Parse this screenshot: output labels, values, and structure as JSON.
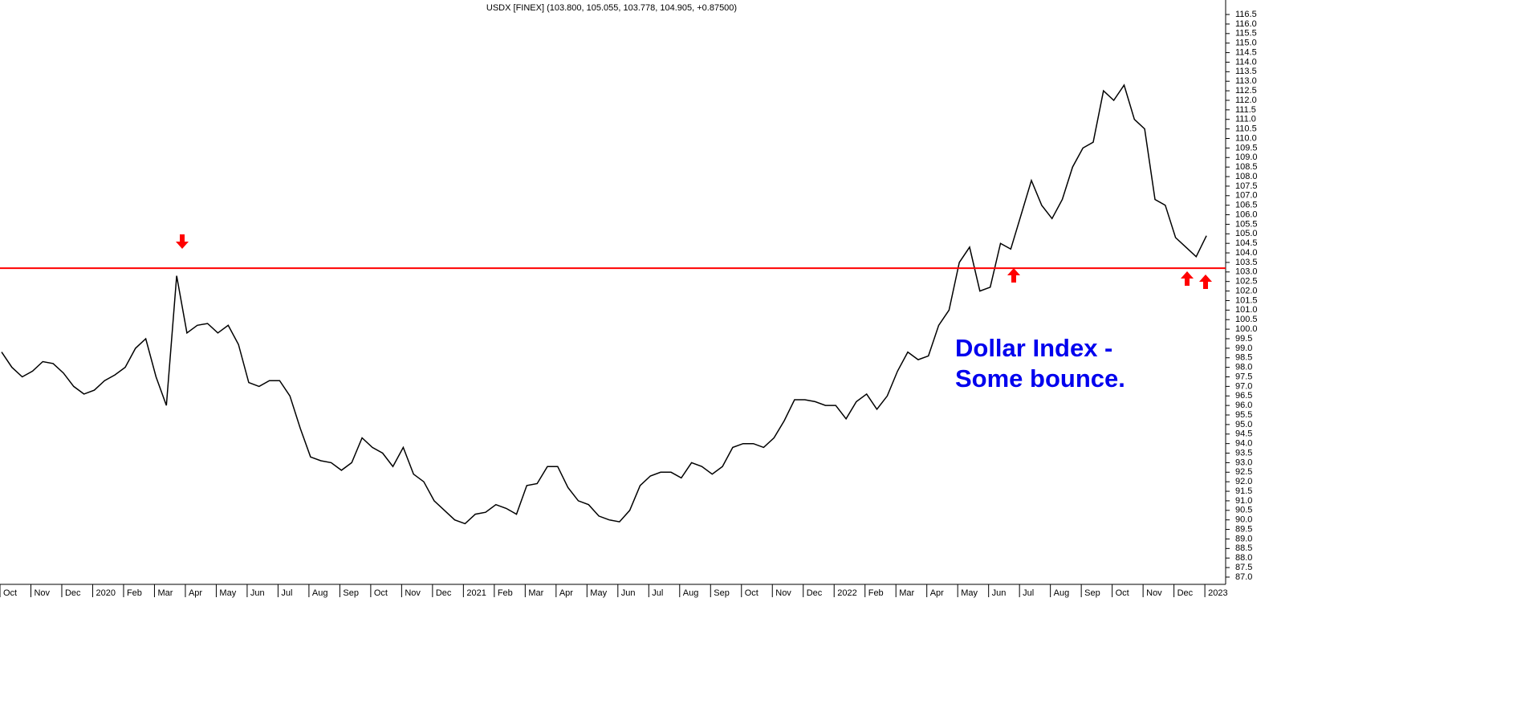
{
  "chart_data": {
    "type": "line",
    "title": "USDX [FINEX] (103.800, 105.055, 103.778, 104.905, +0.87500)",
    "annotations": [
      "Dollar Index -",
      "Some bounce."
    ],
    "categories": [
      "Oct",
      null,
      null,
      "Nov",
      null,
      null,
      "Dec",
      null,
      null,
      "2020",
      null,
      null,
      "Feb",
      null,
      null,
      "Mar",
      null,
      null,
      "Apr",
      null,
      null,
      "May",
      null,
      null,
      "Jun",
      null,
      null,
      "Jul",
      null,
      null,
      "Aug",
      null,
      null,
      "Sep",
      null,
      null,
      "Oct",
      null,
      null,
      "Nov",
      null,
      null,
      "Dec",
      null,
      null,
      "2021",
      null,
      null,
      "Feb",
      null,
      null,
      "Mar",
      null,
      null,
      "Apr",
      null,
      null,
      "May",
      null,
      null,
      "Jun",
      null,
      null,
      "Jul",
      null,
      null,
      "Aug",
      null,
      null,
      "Sep",
      null,
      null,
      "Oct",
      null,
      null,
      "Nov",
      null,
      null,
      "Dec",
      null,
      null,
      "2022",
      null,
      null,
      "Feb",
      null,
      null,
      "Mar",
      null,
      null,
      "Apr",
      null,
      null,
      "May",
      null,
      null,
      "Jun",
      null,
      null,
      "Jul",
      null,
      null,
      "Aug",
      null,
      null,
      "Sep",
      null,
      null,
      "Oct",
      null,
      null,
      "Nov",
      null,
      null,
      "Dec",
      null,
      null,
      "2023"
    ],
    "series": [
      {
        "color": "#000000",
        "values": [
          98.8,
          98.0,
          97.5,
          97.8,
          98.3,
          98.2,
          97.7,
          97.0,
          96.6,
          96.8,
          97.3,
          97.6,
          98.0,
          99.0,
          99.5,
          97.5,
          96.0,
          102.8,
          99.8,
          100.2,
          100.3,
          99.8,
          100.2,
          99.2,
          97.2,
          97.0,
          97.3,
          97.3,
          96.5,
          94.8,
          93.3,
          93.1,
          93.0,
          92.6,
          93.0,
          94.3,
          93.8,
          93.5,
          92.8,
          93.8,
          92.4,
          92.0,
          91.0,
          90.5,
          90.0,
          89.8,
          90.3,
          90.4,
          90.8,
          90.6,
          90.3,
          91.8,
          91.9,
          92.8,
          92.8,
          91.7,
          91.0,
          90.8,
          90.2,
          90.0,
          89.9,
          90.5,
          91.8,
          92.3,
          92.5,
          92.5,
          92.2,
          93.0,
          92.8,
          92.4,
          92.8,
          93.8,
          94.0,
          94.0,
          93.8,
          94.3,
          95.2,
          96.3,
          96.3,
          96.2,
          96.0,
          96.0,
          95.3,
          96.2,
          96.6,
          95.8,
          96.5,
          97.8,
          98.8,
          98.4,
          98.6,
          100.2,
          101.0,
          103.5,
          104.3,
          102.0,
          102.2,
          104.5,
          104.2,
          106.0,
          107.8,
          106.5,
          105.8,
          106.8,
          108.5,
          109.5,
          109.8,
          112.5,
          112.0,
          112.8,
          111.0,
          110.5,
          106.8,
          106.5,
          104.8,
          104.3,
          103.8,
          104.9
        ]
      }
    ],
    "hline": 103.2,
    "hline_color": "#ff0000",
    "ylim": [
      86.62,
      117.26
    ],
    "yticks": [
      {
        "value": 87,
        "label": "87.0"
      },
      87.5,
      {
        "value": 88,
        "label": "88.0"
      },
      88.5,
      {
        "value": 89,
        "label": "89.0"
      },
      89.5,
      {
        "value": 90,
        "label": "90.0"
      },
      90.5,
      {
        "value": 91,
        "label": "91.0"
      },
      91.5,
      {
        "value": 92,
        "label": "92.0"
      },
      92.5,
      {
        "value": 93,
        "label": "93.0"
      },
      93.5,
      {
        "value": 94,
        "label": "94.0"
      },
      94.5,
      {
        "value": 95,
        "label": "95.0"
      },
      95.5,
      {
        "value": 96,
        "label": "96.0"
      },
      96.5,
      {
        "value": 97,
        "label": "97.0"
      },
      97.5,
      {
        "value": 98,
        "label": "98.0"
      },
      98.5,
      {
        "value": 99,
        "label": "99.0"
      },
      99.5,
      {
        "value": 100,
        "label": "100.0"
      },
      100.5,
      {
        "value": 101,
        "label": "101.0"
      },
      101.5,
      {
        "value": 102,
        "label": "102.0"
      },
      102.5,
      {
        "value": 103,
        "label": "103.0"
      },
      103.5,
      {
        "value": 104,
        "label": "104.0"
      },
      104.5,
      {
        "value": 105,
        "label": "105.0"
      },
      105.5,
      {
        "value": 106,
        "label": "106.0"
      },
      106.5,
      {
        "value": 107,
        "label": "107.0"
      },
      107.5,
      {
        "value": 108,
        "label": "108.0"
      },
      108.5,
      {
        "value": 109,
        "label": "109.0"
      },
      109.5,
      {
        "value": 110,
        "label": "110.0"
      },
      110.5,
      {
        "value": 111,
        "label": "111.0"
      },
      111.5,
      {
        "value": 112,
        "label": "112.0"
      },
      112.5,
      {
        "value": 113,
        "label": "113.0"
      },
      113.5,
      {
        "value": 114,
        "label": "114.0"
      },
      114.5,
      {
        "value": 115,
        "label": "115.0"
      },
      115.5,
      {
        "value": 116,
        "label": "116.0"
      },
      116.5
    ]
  }
}
